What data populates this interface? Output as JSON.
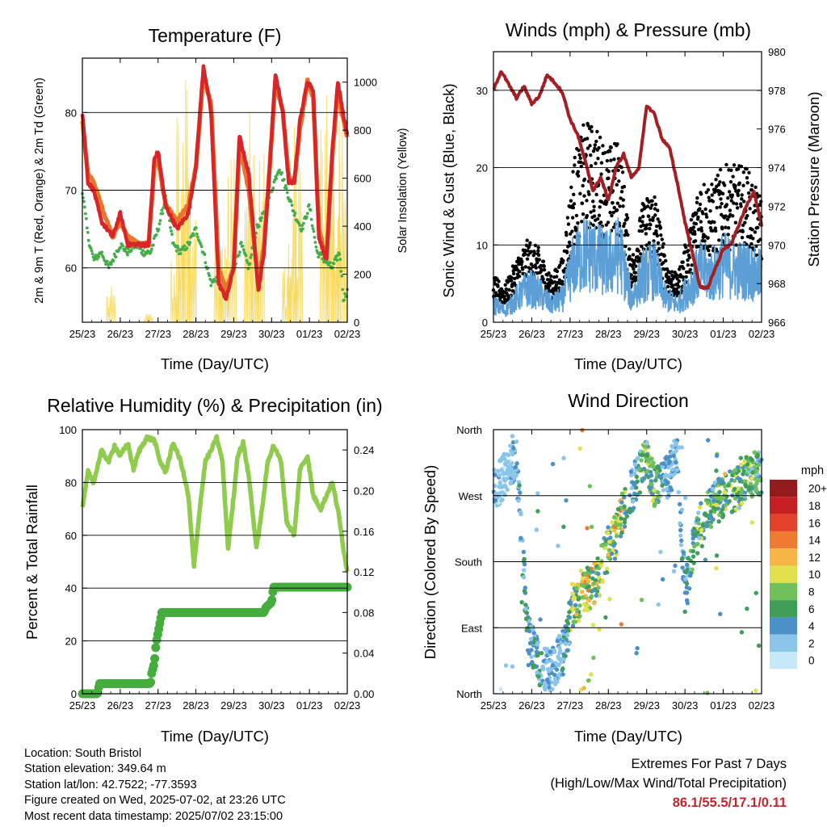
{
  "info": {
    "location": "Location: South Bristol",
    "elevation": "Station elevation: 349.64 m",
    "latlon": "Station lat/lon: 42.7522; -77.3593",
    "created": "Figure created on Wed, 2025-07-02, at 23:26 UTC",
    "recent": "Most recent data timestamp: 2025/07/02 23:15:00"
  },
  "extremes": {
    "line1": "Extremes For Past 7 Days",
    "line2": "(High/Low/Max Wind/Total Precipitation)",
    "values": "86.1/55.5/17.1/0.11",
    "color": "#c1272d"
  },
  "colors": {
    "temp2m": "#e9742a",
    "temp9m": "#d7262a",
    "dewpoint": "#44ad4a",
    "solar": "#f6d343",
    "wind": "#5b9fd6",
    "gust": "#000000",
    "pressure": "#a21f24",
    "rh": "#8fcc4d",
    "precip": "#44ad3e"
  },
  "chart_data": [
    {
      "type": "line",
      "title": "Temperature (F)",
      "xlabel": "Time (Day/UTC)",
      "ylabel": "2m & 9m T (Red, Orange) & 2m Td (Green)",
      "ylabel_right": "Solar Insolation (Yellow)",
      "x_ticks": [
        "25/23",
        "26/23",
        "27/23",
        "28/23",
        "29/23",
        "30/23",
        "01/23",
        "02/23"
      ],
      "y_ticks": [
        60,
        70,
        80
      ],
      "y_right_ticks": [
        0,
        200,
        400,
        600,
        800,
        1000
      ],
      "ylim": [
        53,
        87
      ],
      "ylim_right": [
        0,
        1100
      ],
      "xlim": [
        0,
        7
      ],
      "grid": "horizontal",
      "series": [
        {
          "name": "2m T",
          "x": [
            0,
            0.15,
            0.3,
            0.5,
            0.8,
            1,
            1.2,
            1.5,
            1.75,
            1.9,
            2,
            2.2,
            2.5,
            2.8,
            3,
            3.2,
            3.4,
            3.6,
            3.8,
            4,
            4.15,
            4.4,
            4.65,
            4.8,
            4.95,
            5.1,
            5.3,
            5.45,
            5.6,
            5.75,
            5.95,
            6.1,
            6.25,
            6.45,
            6.6,
            6.75,
            6.85,
            7
          ],
          "y": [
            79,
            72,
            71,
            68,
            64,
            66,
            64,
            63,
            63,
            73,
            74,
            68,
            66,
            68,
            73,
            85,
            81,
            60,
            57,
            60,
            76,
            70,
            58,
            63,
            73,
            84,
            80,
            72,
            71,
            78,
            84,
            82,
            65,
            61,
            74,
            83,
            80,
            77
          ]
        },
        {
          "name": "9m T",
          "x": [
            0,
            0.15,
            0.3,
            0.5,
            0.8,
            1,
            1.2,
            1.5,
            1.75,
            1.9,
            2,
            2.2,
            2.5,
            2.8,
            3,
            3.2,
            3.4,
            3.6,
            3.8,
            4,
            4.15,
            4.4,
            4.65,
            4.8,
            4.95,
            5.1,
            5.3,
            5.45,
            5.6,
            5.75,
            5.95,
            6.1,
            6.25,
            6.45,
            6.6,
            6.75,
            6.85,
            7
          ],
          "y": [
            80,
            71,
            70,
            66,
            64,
            67,
            63,
            63,
            63,
            74,
            75,
            68,
            65,
            67,
            73,
            86,
            80,
            58,
            56,
            60,
            77,
            72,
            57,
            62,
            73,
            85,
            80,
            71,
            71,
            79,
            84,
            83,
            64,
            61,
            75,
            84,
            81,
            77
          ]
        },
        {
          "name": "2m Td",
          "x": [
            0,
            0.15,
            0.3,
            0.5,
            0.7,
            1,
            1.2,
            1.4,
            1.6,
            1.8,
            2,
            2.2,
            2.4,
            2.6,
            2.8,
            3,
            3.2,
            3.4,
            3.6,
            3.8,
            4,
            4.2,
            4.4,
            4.6,
            4.8,
            5,
            5.2,
            5.4,
            5.6,
            5.8,
            6,
            6.2,
            6.4,
            6.6,
            6.8,
            6.9,
            7
          ],
          "y": [
            70,
            64,
            61,
            62,
            60,
            63,
            62,
            63,
            62,
            62,
            65,
            69,
            63,
            62,
            63,
            65,
            62,
            58,
            59,
            57,
            60,
            63,
            60,
            65,
            67,
            70,
            73,
            70,
            67,
            65,
            68,
            62,
            61,
            60,
            62,
            56,
            57
          ]
        },
        {
          "name": "Solar",
          "peaks_x": [
            0.75,
            1.75,
            2.45,
            2.6,
            2.75,
            2.9,
            3.6,
            3.75,
            3.95,
            4.4,
            4.55,
            4.7,
            5.4,
            5.55,
            5.7,
            6.4,
            6.55,
            6.7,
            6.85
          ],
          "peaks_y": [
            150,
            40,
            300,
            950,
            1080,
            700,
            350,
            350,
            900,
            920,
            950,
            800,
            300,
            450,
            880,
            950,
            700,
            780,
            950
          ]
        }
      ]
    },
    {
      "type": "scatter",
      "title": "Winds (mph) & Pressure (mb)",
      "xlabel": "Time (Day/UTC)",
      "ylabel": "Sonic Wind & Gust (Blue, Black)",
      "ylabel_right": "Station Pressure (Maroon)",
      "x_ticks": [
        "25/23",
        "26/23",
        "27/23",
        "28/23",
        "29/23",
        "30/23",
        "01/23",
        "02/23"
      ],
      "y_ticks": [
        0,
        10,
        20,
        30
      ],
      "y_right_ticks": [
        966,
        968,
        970,
        972,
        974,
        976,
        978,
        980
      ],
      "ylim": [
        0,
        35
      ],
      "ylim_right": [
        966,
        980
      ],
      "xlim": [
        0,
        7
      ],
      "grid": "horizontal",
      "wind_envelope": {
        "x": [
          0,
          0.3,
          0.6,
          0.9,
          1.2,
          1.5,
          1.8,
          2.1,
          2.4,
          2.7,
          3.0,
          3.3,
          3.6,
          3.9,
          4.2,
          4.5,
          4.8,
          5.1,
          5.4,
          5.7,
          6.0,
          6.3,
          6.6,
          6.9
        ],
        "y": [
          3,
          2,
          4,
          6,
          5,
          3,
          4,
          10,
          12,
          11,
          10,
          12,
          4,
          8,
          9,
          4,
          3,
          6,
          9,
          8,
          10,
          9,
          9,
          8
        ]
      },
      "gust_envelope": {
        "x": [
          0,
          0.3,
          0.6,
          0.9,
          1.2,
          1.5,
          1.8,
          2.1,
          2.4,
          2.7,
          3.0,
          3.3,
          3.6,
          3.9,
          4.2,
          4.5,
          4.8,
          5.1,
          5.4,
          5.7,
          6.0,
          6.3,
          6.6,
          6.9
        ],
        "y": [
          5,
          4,
          7,
          9,
          8,
          5,
          7,
          18,
          22,
          21,
          19,
          20,
          7,
          13,
          15,
          7,
          5,
          10,
          16,
          15,
          17,
          17,
          17,
          14
        ]
      },
      "pressure": {
        "x": [
          0,
          0.2,
          0.4,
          0.6,
          0.8,
          1,
          1.2,
          1.4,
          1.6,
          1.8,
          2,
          2.2,
          2.4,
          2.6,
          2.8,
          3,
          3.2,
          3.4,
          3.6,
          3.8,
          4,
          4.2,
          4.4,
          4.6,
          4.8,
          5,
          5.2,
          5.4,
          5.6,
          5.8,
          6,
          6.2,
          6.4,
          6.6,
          6.8,
          7
        ],
        "y": [
          978,
          979,
          978.3,
          977.6,
          978.2,
          977.3,
          977.7,
          978.8,
          978.4,
          977.9,
          976.5,
          975.7,
          974.3,
          972.8,
          973.5,
          972.3,
          974,
          974.7,
          973.5,
          974,
          977.2,
          976.8,
          975.5,
          975,
          973.2,
          971.2,
          969.5,
          967.8,
          967.8,
          968.8,
          969.8,
          970,
          971,
          972,
          972.8,
          971
        ]
      }
    },
    {
      "type": "line",
      "title": "Relative Humidity (%) & Precipitation (in)",
      "xlabel": "Time (Day/UTC)",
      "ylabel": "Percent & Total Rainfall",
      "x_ticks": [
        "25/23",
        "26/23",
        "27/23",
        "28/23",
        "29/23",
        "30/23",
        "01/23",
        "02/23"
      ],
      "y_ticks": [
        0,
        20,
        40,
        60,
        80,
        100
      ],
      "y_right_ticks": [
        "0.00",
        "0.04",
        "0.08",
        "0.12",
        "0.16",
        "0.20",
        "0.24"
      ],
      "ylim": [
        0,
        100
      ],
      "ylim_right": [
        0,
        0.26
      ],
      "xlim": [
        0,
        7
      ],
      "grid": "horizontal",
      "series": [
        {
          "name": "RH",
          "x": [
            0,
            0.15,
            0.3,
            0.5,
            0.7,
            0.85,
            1,
            1.2,
            1.35,
            1.5,
            1.7,
            1.9,
            2.05,
            2.2,
            2.4,
            2.6,
            2.8,
            2.95,
            3.1,
            3.25,
            3.4,
            3.55,
            3.7,
            3.85,
            4,
            4.1,
            4.25,
            4.4,
            4.6,
            4.75,
            4.9,
            5.05,
            5.25,
            5.4,
            5.6,
            5.75,
            5.95,
            6.1,
            6.3,
            6.45,
            6.6,
            6.75,
            6.9,
            7
          ],
          "y": [
            70,
            84,
            80,
            92,
            88,
            94,
            90,
            95,
            85,
            92,
            97,
            96,
            88,
            84,
            95,
            88,
            75,
            48,
            70,
            88,
            92,
            97,
            88,
            55,
            75,
            90,
            95,
            82,
            55,
            70,
            88,
            94,
            88,
            65,
            60,
            85,
            90,
            75,
            70,
            75,
            80,
            70,
            55,
            46
          ]
        },
        {
          "name": "Precip",
          "x": [
            0,
            0.4,
            0.45,
            1.8,
            1.83,
            1.9,
            1.95,
            2.05,
            2.1,
            2.7,
            4.8,
            4.85,
            5.0,
            5.05,
            5.3,
            7
          ],
          "y": [
            0,
            0,
            0.01,
            0.01,
            0.02,
            0.03,
            0.05,
            0.07,
            0.08,
            0.08,
            0.08,
            0.085,
            0.09,
            0.105,
            0.105,
            0.105
          ]
        }
      ]
    },
    {
      "type": "scatter",
      "title": "Wind Direction",
      "xlabel": "Time (Day/UTC)",
      "ylabel": "Direction (Colored By Speed)",
      "x_ticks": [
        "25/23",
        "26/23",
        "27/23",
        "28/23",
        "29/23",
        "30/23",
        "01/23",
        "02/23"
      ],
      "y_ticks": [
        "North",
        "East",
        "South",
        "West",
        "North"
      ],
      "ylim": [
        0,
        360
      ],
      "xlim": [
        0,
        7
      ],
      "grid": "horizontal",
      "trend": {
        "x": [
          0,
          0.3,
          0.6,
          0.9,
          1.2,
          1.5,
          1.8,
          2.1,
          2.4,
          2.7,
          3.0,
          3.2,
          3.4,
          3.6,
          3.8,
          4.0,
          4.2,
          4.4,
          4.6,
          4.8,
          5.0,
          5.2,
          5.4,
          5.6,
          5.8,
          6.0,
          6.2,
          6.4,
          6.6,
          6.8,
          7
        ],
        "y": [
          275,
          300,
          320,
          80,
          40,
          30,
          60,
          120,
          140,
          155,
          200,
          215,
          250,
          275,
          300,
          320,
          280,
          290,
          300,
          330,
          130,
          200,
          230,
          245,
          260,
          270,
          275,
          280,
          295,
          300,
          300
        ]
      },
      "colorbar": {
        "label": "mph",
        "levels": [
          "0",
          "2",
          "4",
          "6",
          "8",
          "10",
          "12",
          "14",
          "16",
          "18",
          "20+"
        ],
        "colors": [
          "#c7e8f6",
          "#8cc5ea",
          "#4b91c8",
          "#3f9e57",
          "#6fbf5a",
          "#e1e04f",
          "#f6b546",
          "#ef7b33",
          "#e4432b",
          "#c42024",
          "#931b1c"
        ]
      }
    }
  ]
}
